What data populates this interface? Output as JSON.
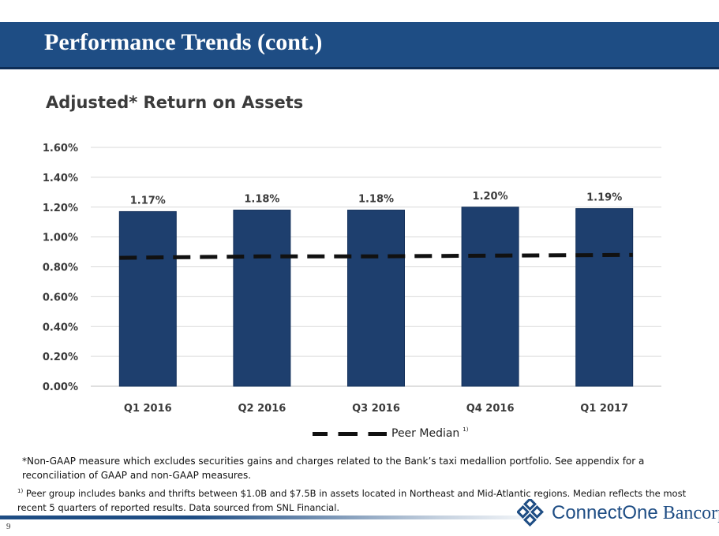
{
  "header": {
    "title": "Performance Trends (cont.)",
    "band_color": "#1e4d84"
  },
  "chart_data": {
    "type": "bar",
    "title": "Adjusted* Return on Assets",
    "categories": [
      "Q1 2016",
      "Q2 2016",
      "Q3 2016",
      "Q4 2016",
      "Q1 2017"
    ],
    "series": [
      {
        "values": [
          1.17,
          1.18,
          1.18,
          1.2,
          1.19
        ],
        "labels": [
          "1.17%",
          "1.18%",
          "1.18%",
          "1.20%",
          "1.19%"
        ],
        "color": "#1e3f6e"
      },
      {
        "name": "Peer Median",
        "type": "line",
        "style": "dashed",
        "values": [
          0.86,
          0.87,
          0.87,
          0.875,
          0.88
        ],
        "color": "#111111"
      }
    ],
    "y_ticks": [
      "0.00%",
      "0.20%",
      "0.40%",
      "0.60%",
      "0.80%",
      "1.00%",
      "1.20%",
      "1.40%",
      "1.60%"
    ],
    "ylim": [
      0,
      1.6
    ],
    "grid": true,
    "legend_position": "bottom"
  },
  "legend": {
    "label": "Peer Median",
    "footnote_marker": "1)"
  },
  "footnotes": {
    "gaap": "*Non-GAAP measure which excludes securities gains and charges related to the Bank’s taxi medallion portfolio. See appendix for a reconciliation of GAAP and non-GAAP measures.",
    "peer_marker": "1)",
    "peer": "Peer group includes banks and thrifts between $1.0B and $7.5B in assets located in Northeast and Mid-Atlantic regions.  Median reflects the most recent 5 quarters of reported results. Data sourced from SNL Financial."
  },
  "page_number": "9",
  "logo": {
    "name_part1": "ConnectOne",
    "name_part2": "Bancorp",
    "icon": "diamond-lattice-icon"
  }
}
